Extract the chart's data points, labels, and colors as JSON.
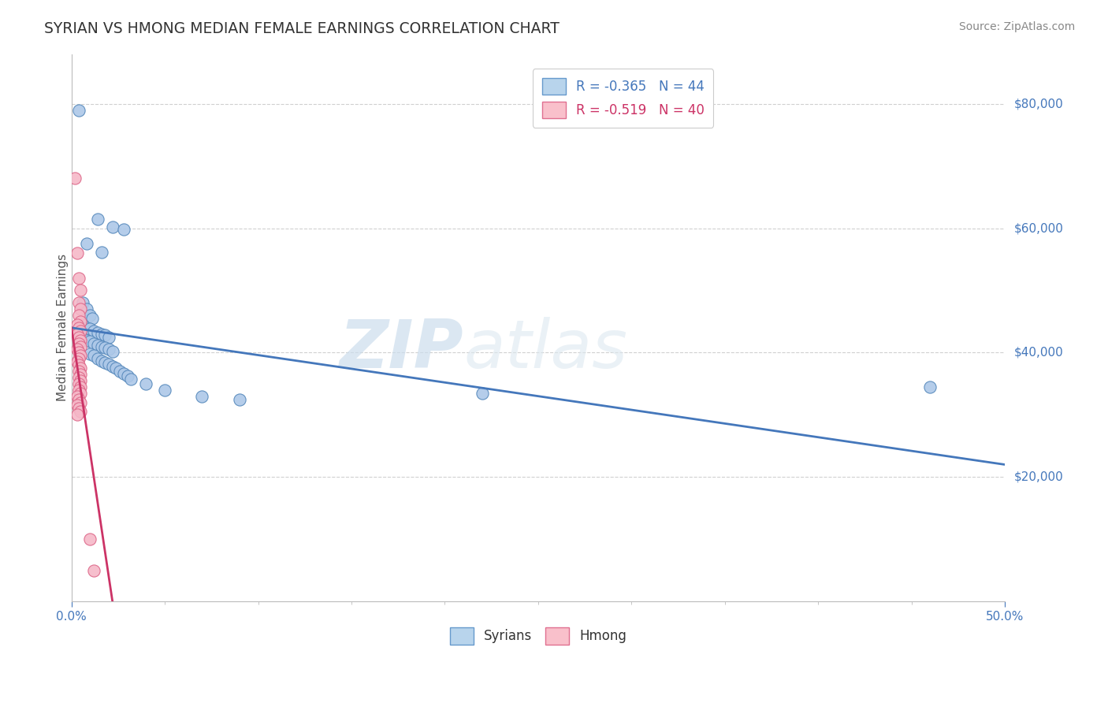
{
  "title": "SYRIAN VS HMONG MEDIAN FEMALE EARNINGS CORRELATION CHART",
  "source": "Source: ZipAtlas.com",
  "ylabel": "Median Female Earnings",
  "xlim": [
    0.0,
    0.5
  ],
  "ylim": [
    0,
    88000
  ],
  "yticks": [
    20000,
    40000,
    60000,
    80000
  ],
  "ytick_labels": [
    "$20,000",
    "$40,000",
    "$60,000",
    "$80,000"
  ],
  "watermark_zip": "ZIP",
  "watermark_atlas": "atlas",
  "legend_syrian": {
    "R": -0.365,
    "N": 44,
    "fill_color": "#b8d4ec",
    "edge_color": "#6699cc"
  },
  "legend_hmong": {
    "R": -0.519,
    "N": 40,
    "fill_color": "#f9c0cb",
    "edge_color": "#e07090"
  },
  "syrian_scatter_color": "#adc8e8",
  "syrian_scatter_edge": "#5588bb",
  "hmong_scatter_color": "#f5b8c8",
  "hmong_scatter_edge": "#dd6688",
  "syrian_line_color": "#4477bb",
  "hmong_line_color": "#cc3366",
  "syrian_points": [
    [
      0.004,
      79000
    ],
    [
      0.014,
      61500
    ],
    [
      0.022,
      60200
    ],
    [
      0.028,
      59800
    ],
    [
      0.008,
      57500
    ],
    [
      0.016,
      56200
    ],
    [
      0.006,
      48000
    ],
    [
      0.008,
      47000
    ],
    [
      0.01,
      46000
    ],
    [
      0.011,
      45500
    ],
    [
      0.006,
      44500
    ],
    [
      0.008,
      44000
    ],
    [
      0.01,
      43800
    ],
    [
      0.012,
      43500
    ],
    [
      0.014,
      43200
    ],
    [
      0.016,
      43000
    ],
    [
      0.018,
      42800
    ],
    [
      0.02,
      42500
    ],
    [
      0.008,
      42000
    ],
    [
      0.01,
      41800
    ],
    [
      0.012,
      41500
    ],
    [
      0.014,
      41200
    ],
    [
      0.016,
      41000
    ],
    [
      0.018,
      40800
    ],
    [
      0.02,
      40500
    ],
    [
      0.022,
      40200
    ],
    [
      0.01,
      39800
    ],
    [
      0.012,
      39500
    ],
    [
      0.014,
      39000
    ],
    [
      0.016,
      38700
    ],
    [
      0.018,
      38400
    ],
    [
      0.02,
      38100
    ],
    [
      0.022,
      37800
    ],
    [
      0.024,
      37500
    ],
    [
      0.026,
      37000
    ],
    [
      0.028,
      36600
    ],
    [
      0.03,
      36200
    ],
    [
      0.032,
      35800
    ],
    [
      0.04,
      35000
    ],
    [
      0.05,
      34000
    ],
    [
      0.07,
      33000
    ],
    [
      0.09,
      32500
    ],
    [
      0.22,
      33500
    ],
    [
      0.46,
      34500
    ]
  ],
  "hmong_points": [
    [
      0.002,
      68000
    ],
    [
      0.003,
      56000
    ],
    [
      0.004,
      52000
    ],
    [
      0.005,
      50000
    ],
    [
      0.004,
      48000
    ],
    [
      0.005,
      47000
    ],
    [
      0.004,
      46000
    ],
    [
      0.005,
      45000
    ],
    [
      0.003,
      44500
    ],
    [
      0.004,
      44000
    ],
    [
      0.005,
      43500
    ],
    [
      0.003,
      43000
    ],
    [
      0.004,
      42500
    ],
    [
      0.005,
      42000
    ],
    [
      0.004,
      41500
    ],
    [
      0.005,
      41000
    ],
    [
      0.003,
      40500
    ],
    [
      0.004,
      40000
    ],
    [
      0.005,
      39500
    ],
    [
      0.004,
      39000
    ],
    [
      0.003,
      38500
    ],
    [
      0.004,
      38000
    ],
    [
      0.005,
      37500
    ],
    [
      0.004,
      37000
    ],
    [
      0.005,
      36500
    ],
    [
      0.004,
      36000
    ],
    [
      0.005,
      35500
    ],
    [
      0.004,
      35000
    ],
    [
      0.005,
      34500
    ],
    [
      0.004,
      34000
    ],
    [
      0.005,
      33500
    ],
    [
      0.003,
      33000
    ],
    [
      0.004,
      32500
    ],
    [
      0.005,
      32000
    ],
    [
      0.003,
      31500
    ],
    [
      0.004,
      31000
    ],
    [
      0.005,
      30500
    ],
    [
      0.003,
      30000
    ],
    [
      0.01,
      10000
    ],
    [
      0.012,
      5000
    ]
  ],
  "syrian_line_x": [
    0.0,
    0.5
  ],
  "syrian_line_y": [
    44000,
    22000
  ],
  "hmong_line_x": [
    0.0,
    0.022
  ],
  "hmong_line_y": [
    44000,
    0
  ],
  "bg_color": "#ffffff",
  "grid_color": "#d0d0d0",
  "title_color": "#333333",
  "spine_color": "#bbbbbb",
  "xtick_label_color": "#4477bb",
  "ytick_label_color": "#4477bb"
}
